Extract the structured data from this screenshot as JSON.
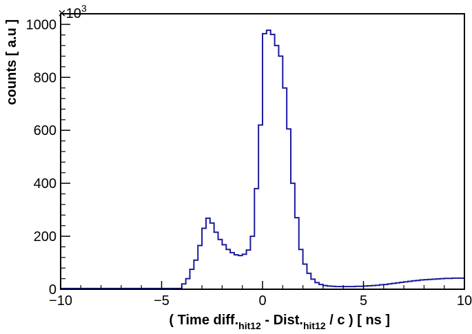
{
  "chart_data": {
    "type": "histogram",
    "xlabel": {
      "prefix": "( Time diff.",
      "sub1": "hit12",
      "middle": " - Dist.",
      "sub2": "hit12",
      "suffix": " / c ) [ ns ]"
    },
    "ylabel": "counts [ a.u ]",
    "y_multiplier": {
      "base": "×10",
      "exponent": "3"
    },
    "xlim": [
      -10,
      10
    ],
    "ylim": [
      0,
      1040
    ],
    "x_ticks": [
      -10,
      -5,
      0,
      5,
      10
    ],
    "x_tick_labels": [
      "−10",
      "−5",
      "0",
      "5",
      "10"
    ],
    "y_ticks": [
      0,
      200,
      400,
      600,
      800,
      1000
    ],
    "y_tick_labels": [
      "0",
      "200",
      "400",
      "600",
      "800",
      "1000"
    ],
    "line_color": "#1a1a9c",
    "bin_width": 0.2,
    "bins": [
      {
        "x": -10.0,
        "y": 3
      },
      {
        "x": -9.8,
        "y": 3
      },
      {
        "x": -9.6,
        "y": 3
      },
      {
        "x": -9.4,
        "y": 3
      },
      {
        "x": -9.2,
        "y": 3
      },
      {
        "x": -9.0,
        "y": 3
      },
      {
        "x": -8.8,
        "y": 3
      },
      {
        "x": -8.6,
        "y": 3
      },
      {
        "x": -8.4,
        "y": 3
      },
      {
        "x": -8.2,
        "y": 3
      },
      {
        "x": -8.0,
        "y": 3
      },
      {
        "x": -7.8,
        "y": 3
      },
      {
        "x": -7.6,
        "y": 3
      },
      {
        "x": -7.4,
        "y": 3
      },
      {
        "x": -7.2,
        "y": 3
      },
      {
        "x": -7.0,
        "y": 3
      },
      {
        "x": -6.8,
        "y": 3
      },
      {
        "x": -6.6,
        "y": 3
      },
      {
        "x": -6.4,
        "y": 3
      },
      {
        "x": -6.2,
        "y": 3
      },
      {
        "x": -6.0,
        "y": 3
      },
      {
        "x": -5.8,
        "y": 3
      },
      {
        "x": -5.6,
        "y": 3
      },
      {
        "x": -5.4,
        "y": 3
      },
      {
        "x": -5.2,
        "y": 3
      },
      {
        "x": -5.0,
        "y": 3
      },
      {
        "x": -4.8,
        "y": 3
      },
      {
        "x": -4.6,
        "y": 3
      },
      {
        "x": -4.4,
        "y": 3
      },
      {
        "x": -4.2,
        "y": 3
      },
      {
        "x": -4.0,
        "y": 20
      },
      {
        "x": -3.8,
        "y": 40
      },
      {
        "x": -3.6,
        "y": 75
      },
      {
        "x": -3.4,
        "y": 110
      },
      {
        "x": -3.2,
        "y": 165
      },
      {
        "x": -3.0,
        "y": 230
      },
      {
        "x": -2.8,
        "y": 268
      },
      {
        "x": -2.6,
        "y": 250
      },
      {
        "x": -2.4,
        "y": 215
      },
      {
        "x": -2.2,
        "y": 188
      },
      {
        "x": -2.0,
        "y": 168
      },
      {
        "x": -1.8,
        "y": 150
      },
      {
        "x": -1.6,
        "y": 138
      },
      {
        "x": -1.4,
        "y": 130
      },
      {
        "x": -1.2,
        "y": 127
      },
      {
        "x": -1.0,
        "y": 132
      },
      {
        "x": -0.8,
        "y": 148
      },
      {
        "x": -0.6,
        "y": 200
      },
      {
        "x": -0.4,
        "y": 380
      },
      {
        "x": -0.2,
        "y": 620
      },
      {
        "x": 0.0,
        "y": 965
      },
      {
        "x": 0.2,
        "y": 978
      },
      {
        "x": 0.4,
        "y": 962
      },
      {
        "x": 0.6,
        "y": 920
      },
      {
        "x": 0.8,
        "y": 880
      },
      {
        "x": 1.0,
        "y": 760
      },
      {
        "x": 1.2,
        "y": 605
      },
      {
        "x": 1.4,
        "y": 400
      },
      {
        "x": 1.6,
        "y": 270
      },
      {
        "x": 1.8,
        "y": 150
      },
      {
        "x": 2.0,
        "y": 95
      },
      {
        "x": 2.2,
        "y": 60
      },
      {
        "x": 2.4,
        "y": 38
      },
      {
        "x": 2.6,
        "y": 25
      },
      {
        "x": 2.8,
        "y": 18
      },
      {
        "x": 3.0,
        "y": 14
      },
      {
        "x": 3.2,
        "y": 12
      },
      {
        "x": 3.4,
        "y": 11
      },
      {
        "x": 3.6,
        "y": 10
      },
      {
        "x": 3.8,
        "y": 10
      },
      {
        "x": 4.0,
        "y": 10
      },
      {
        "x": 4.2,
        "y": 10
      },
      {
        "x": 4.4,
        "y": 10
      },
      {
        "x": 4.6,
        "y": 11
      },
      {
        "x": 4.8,
        "y": 11
      },
      {
        "x": 5.0,
        "y": 12
      },
      {
        "x": 5.2,
        "y": 13
      },
      {
        "x": 5.4,
        "y": 14
      },
      {
        "x": 5.6,
        "y": 15
      },
      {
        "x": 5.8,
        "y": 17
      },
      {
        "x": 6.0,
        "y": 18
      },
      {
        "x": 6.2,
        "y": 20
      },
      {
        "x": 6.4,
        "y": 22
      },
      {
        "x": 6.6,
        "y": 24
      },
      {
        "x": 6.8,
        "y": 26
      },
      {
        "x": 7.0,
        "y": 28
      },
      {
        "x": 7.2,
        "y": 30
      },
      {
        "x": 7.4,
        "y": 32
      },
      {
        "x": 7.6,
        "y": 33
      },
      {
        "x": 7.8,
        "y": 35
      },
      {
        "x": 8.0,
        "y": 36
      },
      {
        "x": 8.2,
        "y": 37
      },
      {
        "x": 8.4,
        "y": 38
      },
      {
        "x": 8.6,
        "y": 39
      },
      {
        "x": 8.8,
        "y": 40
      },
      {
        "x": 9.0,
        "y": 41
      },
      {
        "x": 9.2,
        "y": 41
      },
      {
        "x": 9.4,
        "y": 42
      },
      {
        "x": 9.6,
        "y": 42
      },
      {
        "x": 9.8,
        "y": 42
      }
    ]
  }
}
